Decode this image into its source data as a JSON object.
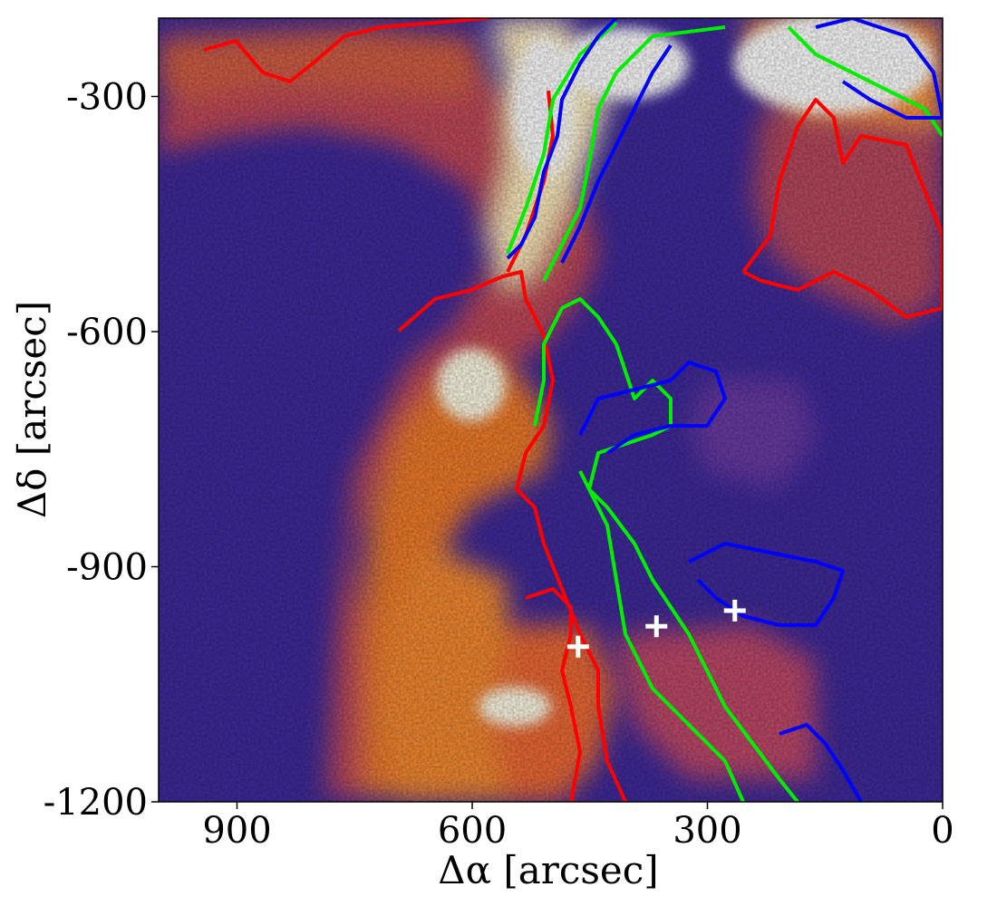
{
  "chart_data": {
    "type": "heatmap",
    "title": "",
    "xlabel": "Δα [arcsec]",
    "ylabel": "Δδ [arcsec]",
    "xlim": [
      1000,
      0
    ],
    "ylim": [
      -1200,
      -200
    ],
    "xticks": [
      900,
      600,
      300,
      0
    ],
    "yticks": [
      -300,
      -600,
      -900,
      -1200
    ],
    "colormap": "dark purple to orange to white",
    "grid": false,
    "contours": [
      {
        "color": "#ff0000",
        "level_name": "",
        "approx_path": [
          [
            650,
            -700
          ],
          [
            560,
            -650
          ],
          [
            520,
            -740
          ],
          [
            470,
            -820
          ],
          [
            420,
            -880
          ],
          [
            390,
            -950
          ],
          [
            360,
            -1040
          ],
          [
            330,
            -1120
          ],
          [
            290,
            -1200
          ]
        ]
      },
      {
        "color": "#00ee00",
        "level_name": "",
        "approx_path": [
          [
            540,
            -230
          ],
          [
            510,
            -380
          ],
          [
            490,
            -520
          ],
          [
            460,
            -680
          ],
          [
            420,
            -800
          ],
          [
            380,
            -900
          ],
          [
            340,
            -1000
          ],
          [
            280,
            -1100
          ],
          [
            170,
            -1200
          ]
        ]
      },
      {
        "color": "#0000ff",
        "level_name": "",
        "approx_path": [
          [
            460,
            -220
          ],
          [
            430,
            -380
          ],
          [
            380,
            -540
          ],
          [
            320,
            -660
          ],
          [
            280,
            -760
          ],
          [
            220,
            -880
          ],
          [
            150,
            -960
          ],
          [
            120,
            -1100
          ],
          [
            90,
            -1200
          ]
        ]
      }
    ],
    "markers": [
      {
        "label": "+",
        "color": "#ffffff",
        "x": 465,
        "y": -1002
      },
      {
        "label": "+",
        "color": "#ffffff",
        "x": 365,
        "y": -976
      },
      {
        "label": "+",
        "color": "#ffffff",
        "x": 265,
        "y": -956
      }
    ]
  }
}
